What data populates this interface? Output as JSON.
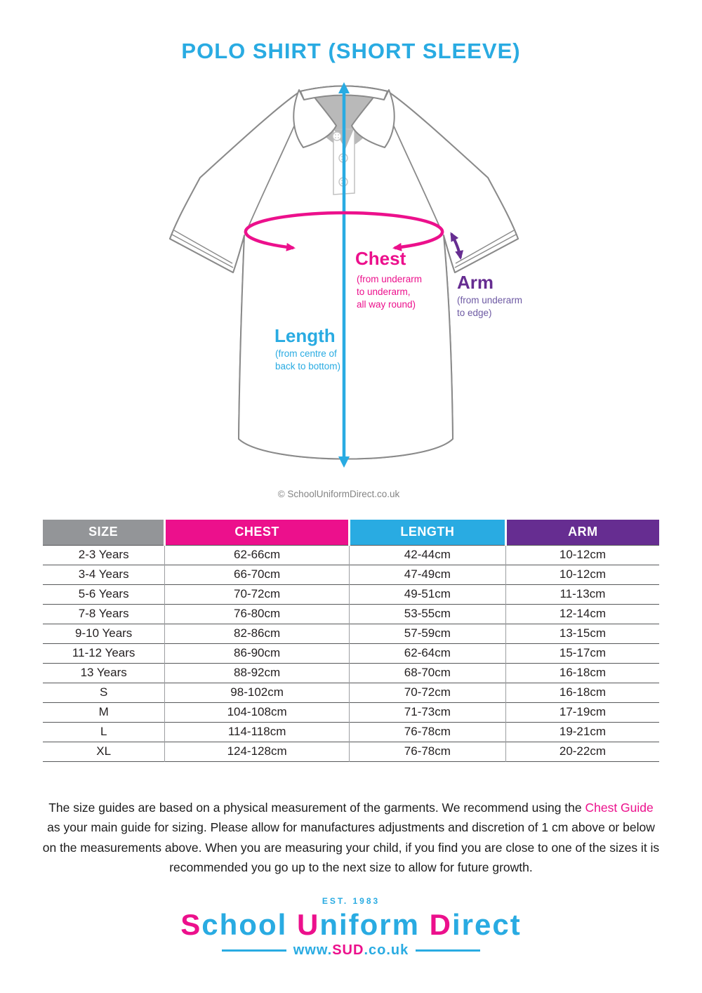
{
  "page": {
    "title": "POLO SHIRT (SHORT SLEEVE)"
  },
  "colors": {
    "blue": "#29ABE2",
    "pink": "#EC108C",
    "purple": "#662D91",
    "gray": "#939598"
  },
  "diagram": {
    "chest_label": "Chest",
    "chest_note_lines": [
      "(from underarm",
      "to underarm,",
      "all way round)"
    ],
    "arm_label": "Arm",
    "arm_note_lines": [
      "(from underarm",
      "to edge)"
    ],
    "length_label": "Length",
    "length_note_lines": [
      "(from centre of",
      "back to bottom)"
    ],
    "copyright": "© SchoolUniformDirect.co.uk"
  },
  "size_table": {
    "columns": [
      {
        "label": "SIZE",
        "color": "#939598"
      },
      {
        "label": "CHEST",
        "color": "#EC108C"
      },
      {
        "label": "LENGTH",
        "color": "#29ABE2"
      },
      {
        "label": "ARM",
        "color": "#662D91"
      }
    ],
    "rows": [
      [
        "2-3 Years",
        "62-66cm",
        "42-44cm",
        "10-12cm"
      ],
      [
        "3-4 Years",
        "66-70cm",
        "47-49cm",
        "10-12cm"
      ],
      [
        "5-6 Years",
        "70-72cm",
        "49-51cm",
        "11-13cm"
      ],
      [
        "7-8 Years",
        "76-80cm",
        "53-55cm",
        "12-14cm"
      ],
      [
        "9-10 Years",
        "82-86cm",
        "57-59cm",
        "13-15cm"
      ],
      [
        "11-12 Years",
        "86-90cm",
        "62-64cm",
        "15-17cm"
      ],
      [
        "13 Years",
        "88-92cm",
        "68-70cm",
        "16-18cm"
      ],
      [
        "S",
        "98-102cm",
        "70-72cm",
        "16-18cm"
      ],
      [
        "M",
        "104-108cm",
        "71-73cm",
        "17-19cm"
      ],
      [
        "L",
        "114-118cm",
        "76-78cm",
        "19-21cm"
      ],
      [
        "XL",
        "124-128cm",
        "76-78cm",
        "20-22cm"
      ]
    ]
  },
  "note": {
    "before_link": "The size guides are based on a physical measurement of the garments. We recommend using the ",
    "link_text": "Chest Guide",
    "after_link": " as your main guide for sizing. Please allow for manufactures adjustments and discretion of 1 cm above or below on the measurements above. When you are measuring your child, if you find you are close to one of the sizes it is recommended you go up to the next size to allow for future growth."
  },
  "logo": {
    "established": "EST. 1983",
    "name_segments": [
      {
        "text": "S",
        "color": "#EC108C"
      },
      {
        "text": "chool ",
        "color": "#29ABE2"
      },
      {
        "text": "U",
        "color": "#EC108C"
      },
      {
        "text": "niform ",
        "color": "#29ABE2"
      },
      {
        "text": "D",
        "color": "#EC108C"
      },
      {
        "text": "irect",
        "color": "#29ABE2"
      }
    ],
    "url_segments": [
      {
        "text": "www.",
        "color": "#29ABE2"
      },
      {
        "text": "SUD",
        "color": "#EC108C"
      },
      {
        "text": ".co.uk",
        "color": "#29ABE2"
      }
    ]
  }
}
